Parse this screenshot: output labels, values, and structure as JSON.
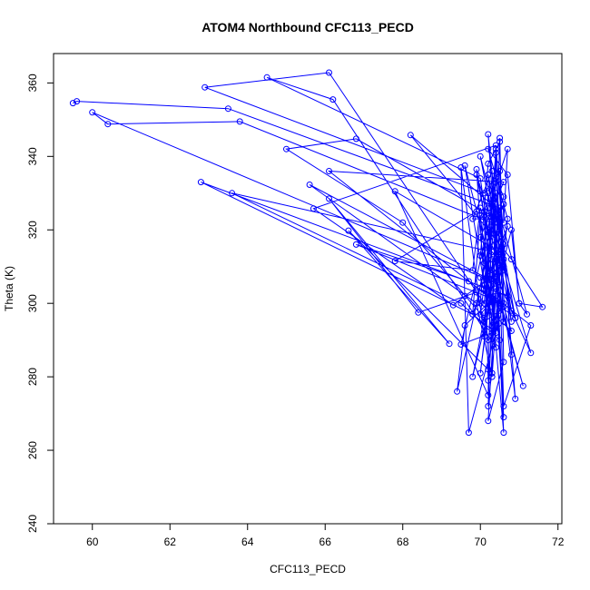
{
  "chart_data": {
    "type": "line",
    "title": "ATOM4 Northbound CFC113_PECD",
    "xlabel": "CFC113_PECD",
    "ylabel": "Theta (K)",
    "xlim": [
      59.0,
      72.1
    ],
    "ylim": [
      240,
      368
    ],
    "xticks": [
      60,
      62,
      64,
      66,
      68,
      70,
      72
    ],
    "yticks": [
      240,
      260,
      280,
      300,
      320,
      340,
      360
    ],
    "grid": false,
    "series_color": "#0000ff",
    "series": [
      {
        "points": [
          [
            59.5,
            354.5
          ],
          [
            59.6,
            355.0
          ],
          [
            63.5,
            353.0
          ],
          [
            70.5,
            326.0
          ],
          [
            70.3,
            308.0
          ],
          [
            70.0,
            281.0
          ],
          [
            70.3,
            306.0
          ],
          [
            60.0,
            352.0
          ],
          [
            60.4,
            348.8
          ],
          [
            63.8,
            349.5
          ],
          [
            70.5,
            321.0
          ],
          [
            70.2,
            268.0
          ],
          [
            70.6,
            284.0
          ],
          [
            70.5,
            336.0
          ],
          [
            70.1,
            330.0
          ],
          [
            62.9,
            358.8
          ],
          [
            66.1,
            362.8
          ],
          [
            70.1,
            300.0
          ],
          [
            70.3,
            325.0
          ],
          [
            70.1,
            295.0
          ],
          [
            70.5,
            298.0
          ],
          [
            70.0,
            334.0
          ],
          [
            64.5,
            361.5
          ],
          [
            66.2,
            355.5
          ],
          [
            70.4,
            288.0
          ],
          [
            70.3,
            312.0
          ],
          [
            70.2,
            326.0
          ],
          [
            70.7,
            342.0
          ],
          [
            70.6,
            322.0
          ],
          [
            66.8,
            344.8
          ],
          [
            65.0,
            342.0
          ],
          [
            68.0,
            322.0
          ],
          [
            70.1,
            296.0
          ],
          [
            70.2,
            303.0
          ],
          [
            70.4,
            304.0
          ],
          [
            70.2,
            279.0
          ],
          [
            70.1,
            325.0
          ],
          [
            70.6,
            316.0
          ],
          [
            70.8,
            286.0
          ],
          [
            70.7,
            302.0
          ],
          [
            62.8,
            333.0
          ],
          [
            69.8,
            297.0
          ],
          [
            70.4,
            292.0
          ],
          [
            70.0,
            307.0
          ],
          [
            70.6,
            310.0
          ],
          [
            70.3,
            314.0
          ],
          [
            63.6,
            330.0
          ],
          [
            69.5,
            300.0
          ],
          [
            70.5,
            290.0
          ],
          [
            70.1,
            311.0
          ],
          [
            70.3,
            299.0
          ],
          [
            70.8,
            320.0
          ],
          [
            71.0,
            300.0
          ],
          [
            71.6,
            299.0
          ],
          [
            70.8,
            312.0
          ],
          [
            70.2,
            320.0
          ],
          [
            68.2,
            345.8
          ],
          [
            70.4,
            326.0
          ],
          [
            70.2,
            305.0
          ],
          [
            70.0,
            318.0
          ],
          [
            70.6,
            333.0
          ],
          [
            66.1,
            336.0
          ],
          [
            70.9,
            296.0
          ],
          [
            70.5,
            314.0
          ],
          [
            71.3,
            286.5
          ],
          [
            70.8,
            298.0
          ],
          [
            70.4,
            324.0
          ],
          [
            70.2,
            272.0
          ],
          [
            70.7,
            323.0
          ],
          [
            70.2,
            342.0
          ],
          [
            70.7,
            335.0
          ],
          [
            71.0,
            300.0
          ],
          [
            71.2,
            297.0
          ],
          [
            70.3,
            332.0
          ],
          [
            70.9,
            296.0
          ],
          [
            70.5,
            305.0
          ],
          [
            65.6,
            332.3
          ],
          [
            69.9,
            300.0
          ],
          [
            70.3,
            280.0
          ],
          [
            70.6,
            327.0
          ],
          [
            70.0,
            313.0
          ],
          [
            70.2,
            338.0
          ],
          [
            70.5,
            344.0
          ],
          [
            70.4,
            312.0
          ],
          [
            69.8,
            280.0
          ],
          [
            70.5,
            311.0
          ],
          [
            70.9,
            274.0
          ],
          [
            70.4,
            343.0
          ],
          [
            65.7,
            325.8
          ],
          [
            69.3,
            299.5
          ],
          [
            69.6,
            302.0
          ],
          [
            70.4,
            308.0
          ],
          [
            70.5,
            345.0
          ],
          [
            70.6,
            300.0
          ],
          [
            69.7,
            264.8
          ],
          [
            69.5,
            337.0
          ],
          [
            70.1,
            291.0
          ],
          [
            70.4,
            342.0
          ],
          [
            70.3,
            281.0
          ],
          [
            70.2,
            282.0
          ],
          [
            66.6,
            319.8
          ],
          [
            69.2,
            289.0
          ],
          [
            66.1,
            328.5
          ],
          [
            68.4,
            297.5
          ],
          [
            69.9,
            303.0
          ],
          [
            70.2,
            290.0
          ],
          [
            70.6,
            295.0
          ],
          [
            70.2,
            335.0
          ],
          [
            70.5,
            319.0
          ],
          [
            70.0,
            340.0
          ],
          [
            70.8,
            295.0
          ],
          [
            70.4,
            330.0
          ],
          [
            69.5,
            288.8
          ],
          [
            70.3,
            292.0
          ],
          [
            69.6,
            337.5
          ],
          [
            70.3,
            309.0
          ],
          [
            71.1,
            277.5
          ],
          [
            70.5,
            300.0
          ],
          [
            70.2,
            346.0
          ],
          [
            70.4,
            325.0
          ],
          [
            69.9,
            300.0
          ],
          [
            69.8,
            297.0
          ],
          [
            70.0,
            324.0
          ],
          [
            70.3,
            294.0
          ],
          [
            70.6,
            300.0
          ],
          [
            66.8,
            316.0
          ],
          [
            69.7,
            306.0
          ],
          [
            70.6,
            299.0
          ],
          [
            70.8,
            292.5
          ],
          [
            70.0,
            300.0
          ],
          [
            70.2,
            330.0
          ],
          [
            70.5,
            314.0
          ],
          [
            67.8,
            330.5
          ],
          [
            70.2,
            275.0
          ],
          [
            70.3,
            332.0
          ],
          [
            70.6,
            264.8
          ],
          [
            70.1,
            324.0
          ],
          [
            69.9,
            335.0
          ],
          [
            70.6,
            312.0
          ],
          [
            70.4,
            334.0
          ],
          [
            70.6,
            329.0
          ],
          [
            70.3,
            319.0
          ],
          [
            69.4,
            276.0
          ],
          [
            69.6,
            294.0
          ],
          [
            70.2,
            300.0
          ],
          [
            70.7,
            321.0
          ],
          [
            70.1,
            304.0
          ],
          [
            71.3,
            294.0
          ],
          [
            70.6,
            272.0
          ],
          [
            70.4,
            341.0
          ],
          [
            70.1,
            305.0
          ],
          [
            69.9,
            336.5
          ],
          [
            70.2,
            318.0
          ],
          [
            70.6,
            309.0
          ],
          [
            70.0,
            326.0
          ],
          [
            69.8,
            309.0
          ],
          [
            67.8,
            311.5
          ],
          [
            69.9,
            325.0
          ],
          [
            70.4,
            323.0
          ],
          [
            69.8,
            323.0
          ],
          [
            70.3,
            336.0
          ],
          [
            70.6,
            269.0
          ],
          [
            70.4,
            302.0
          ],
          [
            70.0,
            297.0
          ],
          [
            70.3,
            321.0
          ]
        ]
      }
    ]
  }
}
